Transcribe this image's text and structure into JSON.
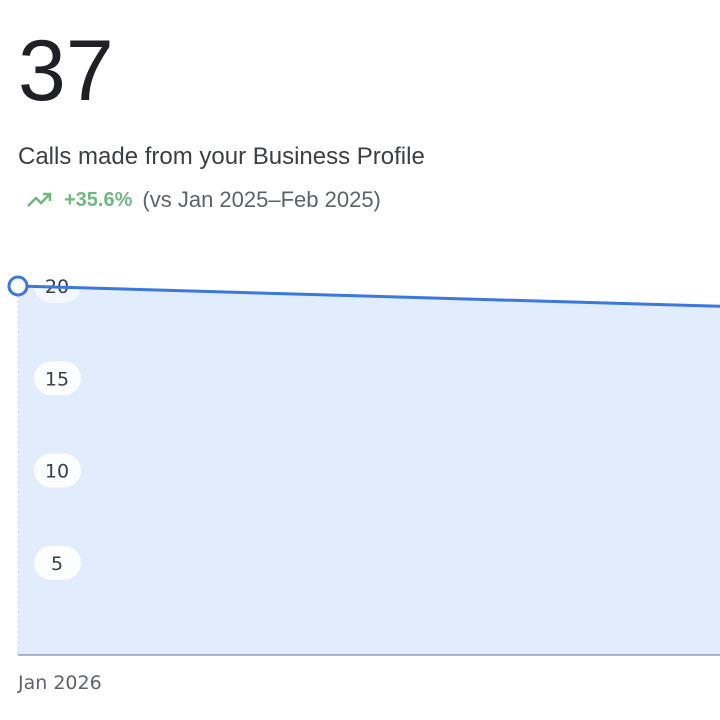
{
  "metric": {
    "value": "37",
    "label": "Calls made from your Business Profile",
    "trend_icon": "trending-up-icon",
    "change": "+35.6%",
    "comparison": "(vs Jan 2025–Feb 2025)"
  },
  "colors": {
    "line": "#3b78dc",
    "fill": "#e1ecfc",
    "positive": "#6fb883"
  },
  "chart_data": {
    "type": "area",
    "x": [
      "Jan 2026",
      ""
    ],
    "series": [
      {
        "values": [
          20,
          18.9
        ]
      }
    ],
    "yticks": [
      5,
      10,
      15,
      20
    ],
    "xticks": [
      "Jan 2026"
    ],
    "ylim": [
      0,
      20
    ],
    "grid": false
  }
}
